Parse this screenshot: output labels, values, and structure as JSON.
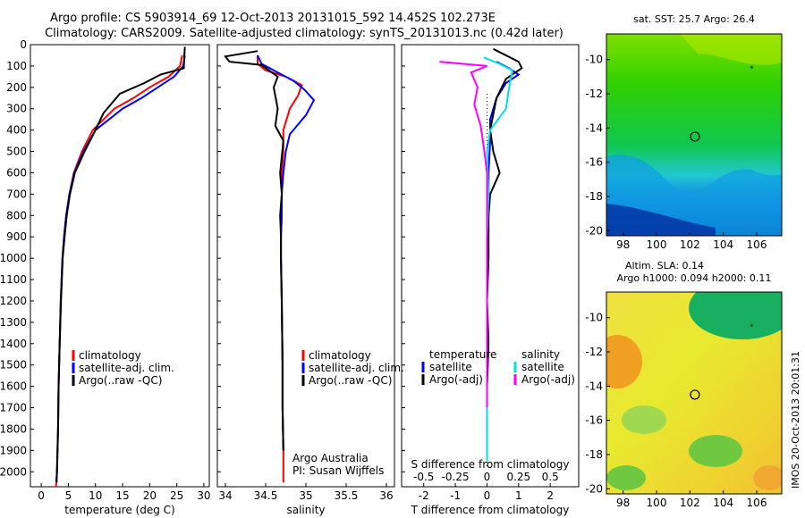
{
  "header": {
    "line1": "Argo profile: CS 5903914_69 12-Oct-2013 20131015_592 14.452S 102.273E",
    "line2": "Climatology: CARS2009. Satellite-adjusted climatology: synTS_20131013.nc (0.42d later)"
  },
  "chart_data": [
    {
      "type": "line",
      "xlabel": "temperature (deg C)",
      "ylabel": "",
      "xlim": [
        -2,
        31
      ],
      "ylim": [
        2070,
        0
      ],
      "xticks": [
        "0",
        "5",
        "10",
        "15",
        "20",
        "25",
        "30"
      ],
      "yticks": [
        "0",
        "100",
        "200",
        "300",
        "400",
        "500",
        "600",
        "700",
        "800",
        "900",
        "1000",
        "1100",
        "1200",
        "1300",
        "1400",
        "1500",
        "1600",
        "1700",
        "1800",
        "1900",
        "2000"
      ],
      "legend": [
        "climatology",
        "satellite-adj. clim.",
        "Argo(..raw -QC)"
      ],
      "series": [
        {
          "name": "climatology",
          "color": "#ff0000",
          "x": [
            26,
            25.6,
            23.5,
            20,
            17,
            13.5,
            11.5,
            9.5,
            7.5,
            6,
            5.2,
            4.6,
            4.2,
            3.9,
            3.6,
            3.4,
            3.2,
            3.1,
            3.0,
            2.9,
            2.8,
            2.7
          ],
          "y": [
            50,
            100,
            150,
            200,
            250,
            300,
            350,
            400,
            500,
            600,
            700,
            800,
            900,
            1000,
            1200,
            1400,
            1600,
            1800,
            1900,
            2000,
            2050,
            2070
          ]
        },
        {
          "name": "satellite-adj. clim.",
          "color": "#0000ff",
          "x": [
            26.5,
            26.2,
            24.5,
            21.5,
            18.5,
            15,
            12.5,
            10,
            7.8,
            6.1,
            5.2,
            4.6,
            4.2,
            3.9,
            3.6,
            3.4,
            3.2,
            3.1,
            3.0,
            2.9,
            2.8
          ],
          "y": [
            50,
            100,
            150,
            200,
            250,
            300,
            350,
            400,
            500,
            600,
            700,
            800,
            900,
            1000,
            1200,
            1400,
            1600,
            1800,
            1900,
            2000,
            2050
          ]
        },
        {
          "name": "Argo(..raw -QC)",
          "color": "#000000",
          "x": [
            26.5,
            26.4,
            26.3,
            22,
            19,
            14.5,
            11.5,
            10,
            8,
            6.2,
            5.3,
            4.7,
            4.3,
            3.95,
            3.65,
            3.4,
            3.2,
            3.1,
            3.0,
            2.9,
            2.8
          ],
          "y": [
            10,
            50,
            110,
            140,
            180,
            230,
            320,
            400,
            500,
            600,
            700,
            800,
            900,
            1000,
            1200,
            1400,
            1600,
            1800,
            1900,
            2000,
            2050
          ]
        }
      ]
    },
    {
      "type": "line",
      "xlabel": "salinity",
      "xlim": [
        33.9,
        36.1
      ],
      "ylim": [
        2070,
        0
      ],
      "xticks": [
        "34",
        "34.5",
        "35",
        "35.5",
        "36"
      ],
      "legend": [
        "climatology",
        "satellite-adj. clim.",
        "Argo(..raw -QC)"
      ],
      "annotation": [
        "Argo Australia",
        "PI: Susan Wijffels"
      ],
      "series": [
        {
          "name": "climatology",
          "color": "#ff0000",
          "x": [
            34.4,
            34.4,
            34.5,
            34.75,
            34.95,
            34.9,
            34.8,
            34.72,
            34.72,
            34.7,
            34.7,
            34.7,
            34.69,
            34.69,
            34.7,
            34.71,
            34.71,
            34.72,
            34.72
          ],
          "y": [
            50,
            90,
            120,
            150,
            190,
            240,
            300,
            400,
            500,
            600,
            700,
            800,
            900,
            1000,
            1200,
            1500,
            1700,
            1900,
            2050
          ]
        },
        {
          "name": "satellite-adj. clim.",
          "color": "#0000ff",
          "x": [
            34.4,
            34.45,
            34.65,
            34.85,
            34.98,
            35.1,
            35.0,
            34.8,
            34.75,
            34.72,
            34.7,
            34.7,
            34.69,
            34.69,
            34.7,
            34.71,
            34.71,
            34.72
          ],
          "y": [
            50,
            90,
            130,
            170,
            210,
            260,
            330,
            420,
            500,
            600,
            700,
            800,
            900,
            1000,
            1200,
            1500,
            1700,
            1900
          ]
        },
        {
          "name": "Argo(..raw -QC)",
          "color": "#000000",
          "x": [
            34.4,
            34.0,
            34.05,
            34.45,
            34.65,
            34.6,
            34.65,
            34.62,
            34.72,
            34.68,
            34.7,
            34.68,
            34.69,
            34.69,
            34.7,
            34.71,
            34.71,
            34.72
          ],
          "y": [
            30,
            55,
            80,
            95,
            150,
            200,
            300,
            380,
            450,
            600,
            700,
            800,
            900,
            1000,
            1200,
            1500,
            1700,
            1900
          ]
        }
      ]
    },
    {
      "type": "line",
      "xlabel": "T difference from climatology",
      "xlabel2": "S difference from climatology",
      "xlim": [
        -2.7,
        2.9
      ],
      "ylim": [
        2070,
        0
      ],
      "xticks": [
        "-2",
        "-1",
        "0",
        "1",
        "2"
      ],
      "xticks2": [
        "-0.5",
        "-0.25",
        "0",
        "0.25",
        "0.5"
      ],
      "legend_titles": [
        "temperature",
        "salinity"
      ],
      "legend": [
        "satellite",
        "Argo(-adj)",
        "satellite",
        "Argo(-adj)"
      ],
      "series": [
        {
          "name": "temperature satellite",
          "color": "#0000ff",
          "x": [
            0.3,
            0.7,
            1.0,
            0.6,
            0.3,
            0.1,
            0.1,
            0.05,
            0.05,
            0.0,
            0.0,
            0.0,
            0.0,
            0.0,
            0.0
          ],
          "y": [
            80,
            110,
            140,
            180,
            250,
            350,
            450,
            600,
            800,
            1000,
            1200,
            1400,
            1600,
            1800,
            1950
          ]
        },
        {
          "name": "temperature Argo(-adj)",
          "color": "#000000",
          "x": [
            0.2,
            1.0,
            1.1,
            0.6,
            0.3,
            0.1,
            0.2,
            0.4,
            0.1,
            0.05,
            0.05,
            0.0,
            0.05,
            0.0,
            0.0
          ],
          "y": [
            20,
            80,
            110,
            160,
            250,
            400,
            500,
            600,
            700,
            800,
            1000,
            1200,
            1400,
            1600,
            1900
          ]
        },
        {
          "name": "salinity satellite",
          "color": "#00e0e0",
          "x": [
            -0.1,
            0.4,
            0.8,
            0.7,
            0.6,
            0.1,
            0.0,
            0.05,
            0.0,
            0.0,
            0.0,
            0.0,
            0.0
          ],
          "y": [
            60,
            90,
            120,
            200,
            300,
            400,
            500,
            700,
            900,
            1100,
            1400,
            1700,
            1950
          ]
        },
        {
          "name": "salinity Argo(-adj)",
          "color": "#ff00ff",
          "x": [
            -1.5,
            0.0,
            -0.5,
            -0.3,
            -0.4,
            -0.2,
            -0.1,
            0.0,
            0.0,
            0.0,
            0.0,
            0.0
          ],
          "y": [
            80,
            100,
            130,
            200,
            280,
            380,
            480,
            600,
            800,
            1000,
            1300,
            1700
          ]
        }
      ]
    },
    {
      "type": "heatmap",
      "title": "sat. SST: 25.7 Argo: 26.4",
      "xlim": [
        97,
        107.5
      ],
      "ylim": [
        -20.3,
        -8.5
      ],
      "xticks": [
        "98",
        "100",
        "102",
        "104",
        "106"
      ],
      "yticks": [
        "-10",
        "-12",
        "-14",
        "-16",
        "-18",
        "-20"
      ],
      "marker": {
        "x": 102.3,
        "y": -14.5
      }
    },
    {
      "type": "heatmap",
      "title_line1": "Altim. SLA: 0.14",
      "title_line2": "Argo h1000: 0.094 h2000: 0.11",
      "xlim": [
        97,
        107.5
      ],
      "ylim": [
        -20.3,
        -8.5
      ],
      "xticks": [
        "98",
        "100",
        "102",
        "104",
        "106"
      ],
      "yticks": [
        "-10",
        "-12",
        "-14",
        "-16",
        "-18",
        "-20"
      ],
      "marker": {
        "x": 102.3,
        "y": -14.5
      }
    }
  ],
  "footer": {
    "stamp": "IMOS 20-Oct-2013 20:01:31"
  }
}
